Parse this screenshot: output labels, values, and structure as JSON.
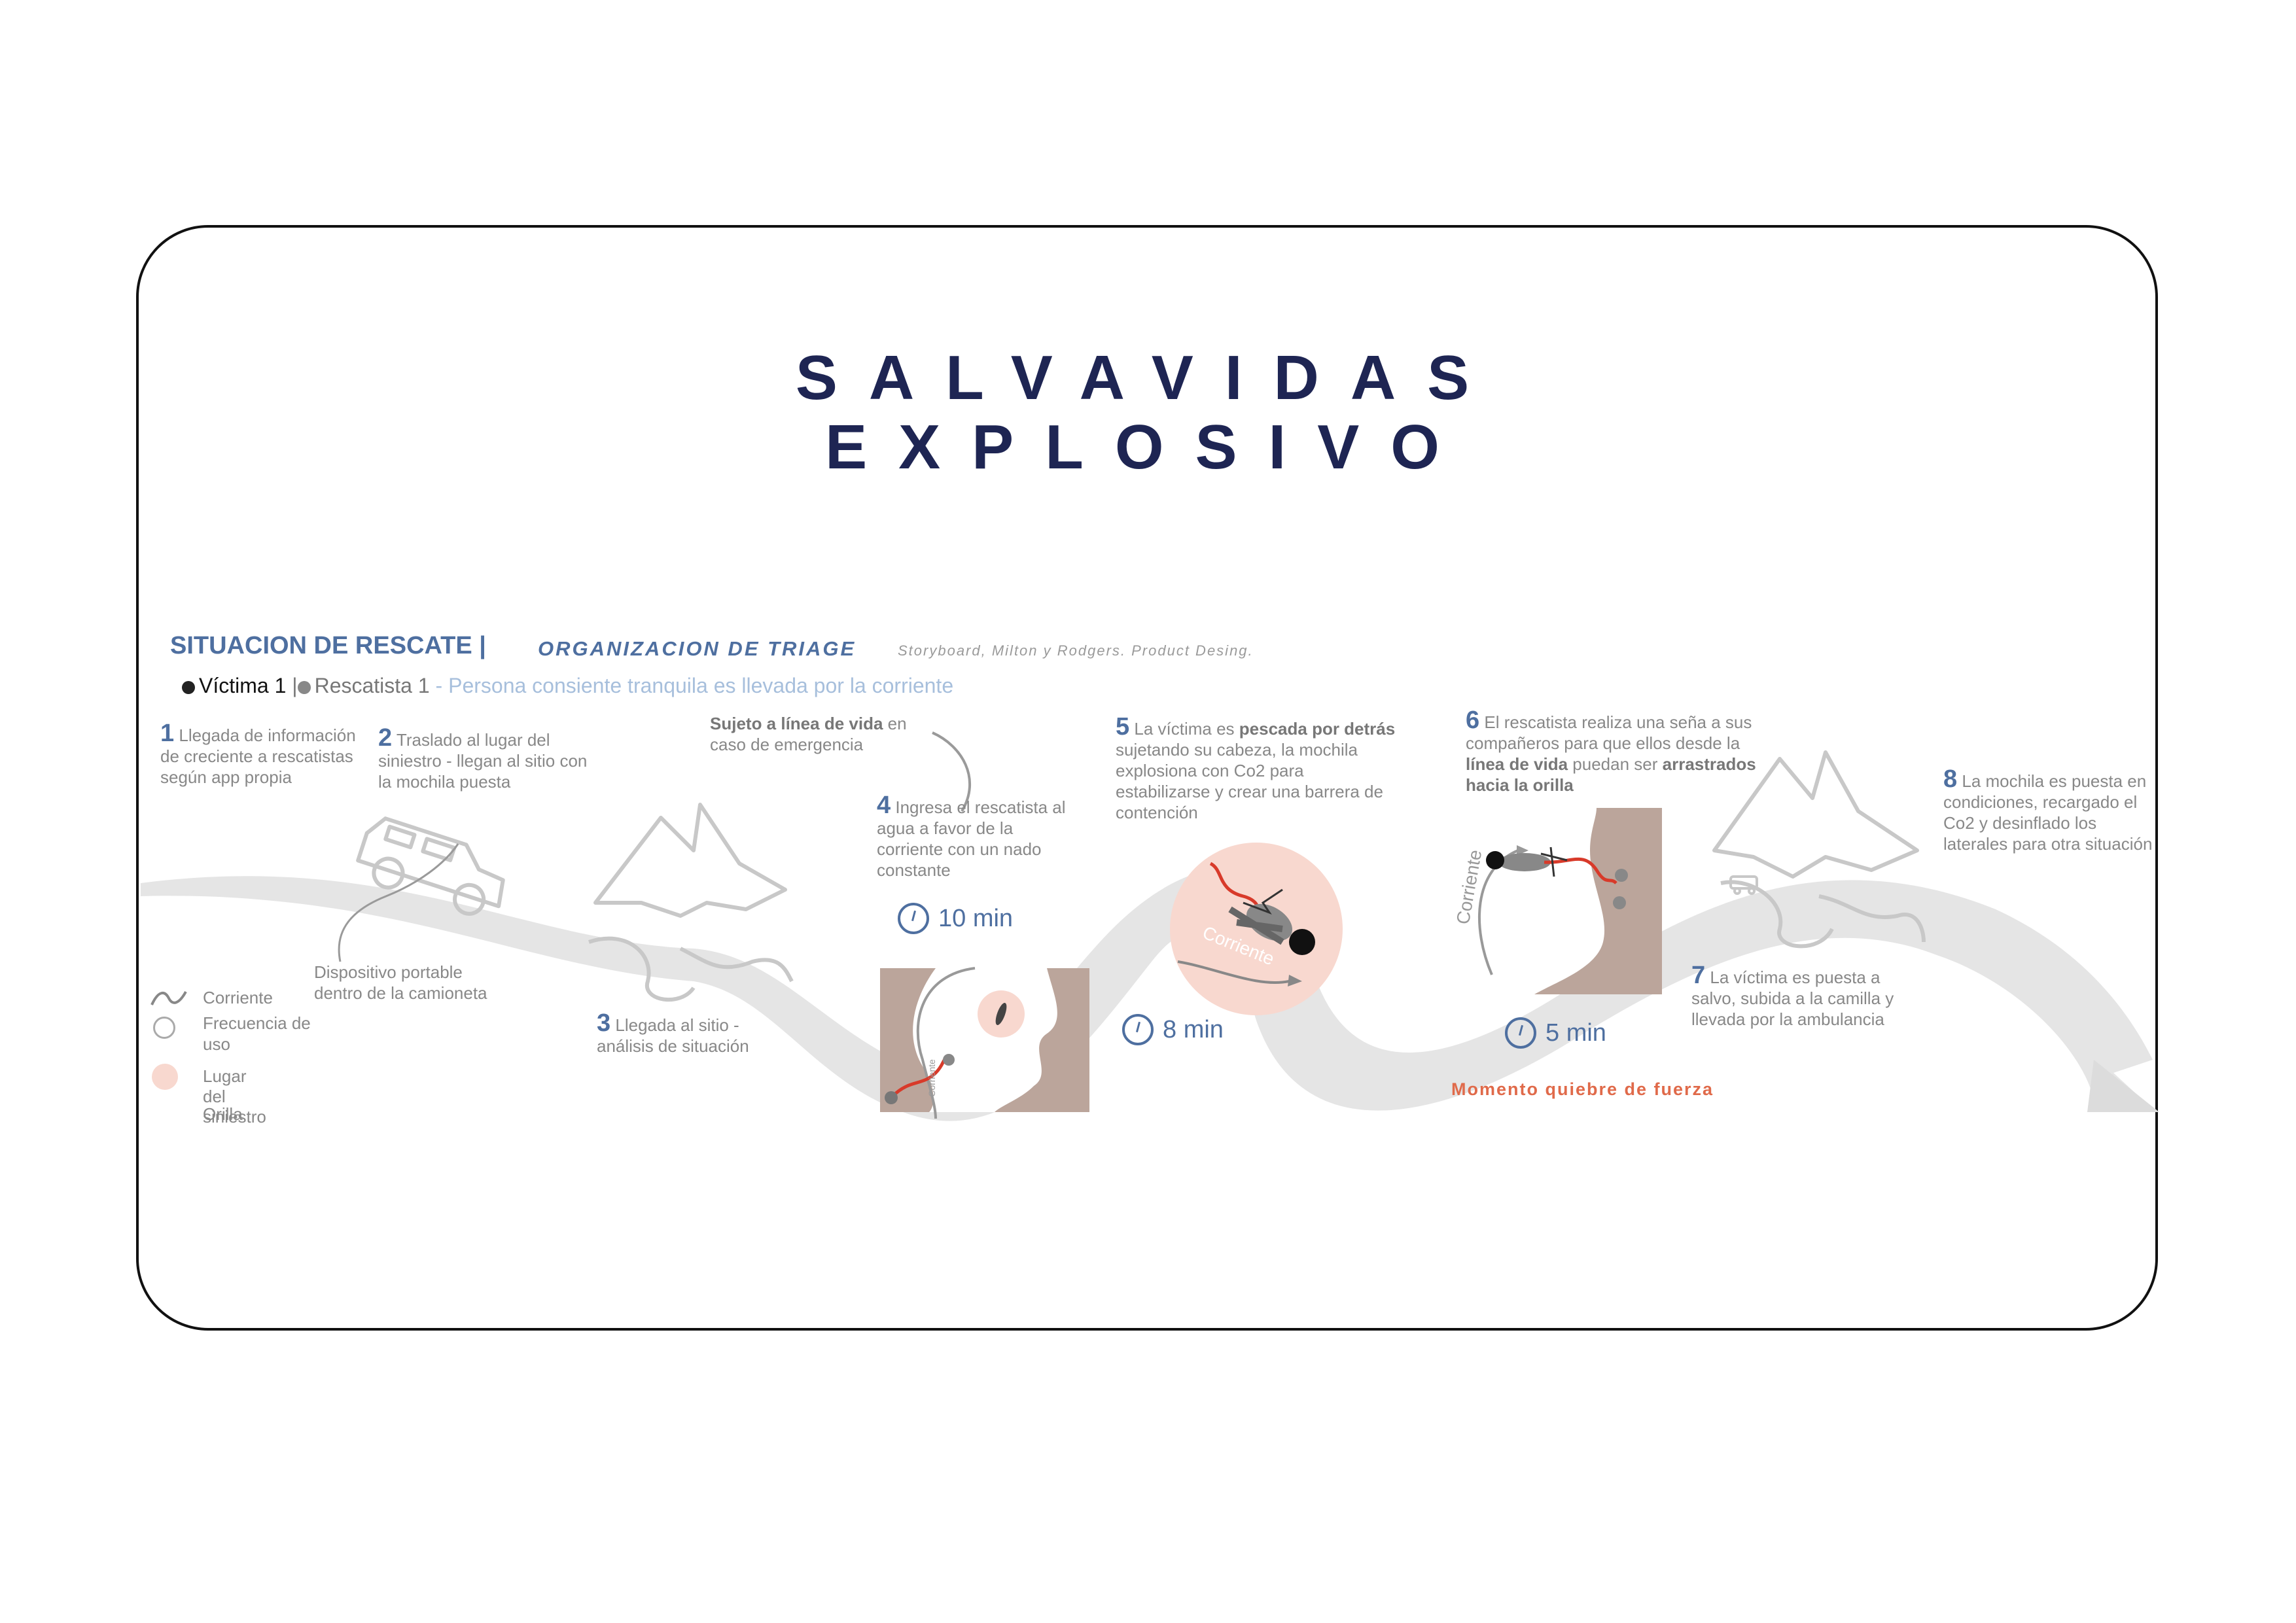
{
  "title": {
    "line1": "SALVAVIDAS",
    "line2": "EXPLOSIVO"
  },
  "header": {
    "main": "SITUACION DE RESCATE |",
    "sub": "ORGANIZACION DE TRIAGE",
    "ref": "Storyboard, Milton y Rodgers. Product Desing."
  },
  "legend_top": {
    "victim": "Víctima 1",
    "sep": "|",
    "rescuer": "Rescatista 1",
    "description": "- Persona consiente tranquila es llevada por la corriente"
  },
  "steps": [
    {
      "num": "1",
      "text": "Llegada de información de creciente a rescatistas según app propia"
    },
    {
      "num": "2",
      "text": "Traslado al lugar del siniestro - llegan al sitio con la mochila puesta"
    },
    {
      "num": "3",
      "text": "Llegada al sitio - análisis de situación"
    },
    {
      "num": "4",
      "text": "Ingresa el rescatista al agua a favor de la corriente con un nado constante"
    },
    {
      "num": "5",
      "pre": "La víctima es ",
      "bold": "pescada por detrás",
      "post": " sujetando su cabeza, la mochila explosiona con Co2 para estabilizarse y crear una barrera de contención"
    },
    {
      "num": "6",
      "pre": "El rescatista realiza una seña a sus compañeros para que ellos desde la ",
      "bold": "línea de vida",
      "mid": " puedan ser ",
      "bold2": "arrastrados hacia la orilla"
    },
    {
      "num": "7",
      "text": "La víctima es puesta a salvo, subida a la camilla y llevada por la ambulancia"
    },
    {
      "num": "8",
      "text": "La mochila es puesta en condiciones, recargado el Co2 y desinflado los laterales para otra situación"
    }
  ],
  "notes": {
    "lifeline_bold": "Sujeto a línea de vida",
    "lifeline_rest": " en caso de emergencia",
    "device": "Dispositivo portable dentro de la camioneta",
    "break_moment": "Momento quiebre de fuerza",
    "current_label": "Corriente",
    "current_small": "Corriente"
  },
  "timers": {
    "t1": "10 min",
    "t2": "8 min",
    "t3": "5 min"
  },
  "legend": {
    "current": "Corriente",
    "frequency": "Frecuencia de uso",
    "site": "Lugar del siniestro",
    "shore": "Orilla"
  },
  "colors": {
    "title": "#1e2553",
    "accent": "#4e6fa0",
    "muted_text": "#888888",
    "light_blue": "#a7bfdc",
    "shore": "#bba59b",
    "site": "#f8d8cf",
    "rope": "#d83a2a",
    "arrow": "#e3e3e3",
    "break": "#e06a4a"
  }
}
